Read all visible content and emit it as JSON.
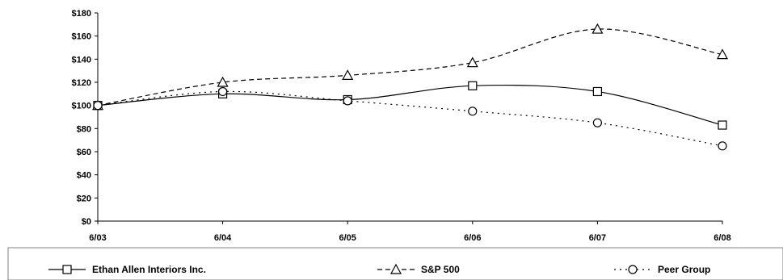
{
  "chart_data": {
    "type": "line",
    "title": "",
    "xlabel": "",
    "ylabel": "",
    "categories": [
      "6/03",
      "6/04",
      "6/05",
      "6/06",
      "6/07",
      "6/08"
    ],
    "ylim": [
      0,
      180
    ],
    "y_ticks": [
      "$0",
      "$20",
      "$40",
      "$60",
      "$80",
      "$100",
      "$120",
      "$140",
      "$160",
      "$180"
    ],
    "grid": false,
    "legend_position": "bottom",
    "series": [
      {
        "name": "Ethan Allen Interiors Inc.",
        "values": [
          100,
          110,
          105,
          117,
          112,
          83
        ],
        "marker": "square",
        "line_style": "solid",
        "color": "#000000"
      },
      {
        "name": "S&P 500",
        "values": [
          100,
          120,
          126,
          137,
          166,
          144
        ],
        "marker": "triangle",
        "line_style": "dashed",
        "color": "#000000"
      },
      {
        "name": "Peer Group",
        "values": [
          100,
          112,
          104,
          95,
          85,
          65
        ],
        "marker": "circle",
        "line_style": "dotted",
        "color": "#000000"
      }
    ]
  }
}
